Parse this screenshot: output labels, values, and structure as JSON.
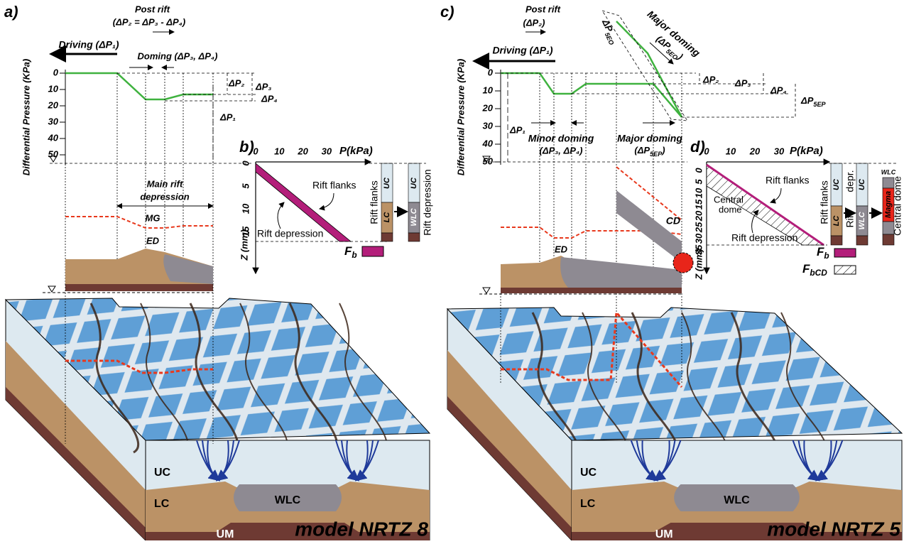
{
  "panel_a": {
    "label": "a)",
    "post_rift": "Post rift",
    "post_rift_eq": "(ΔP₂ = ΔP₃ - ΔP₄)",
    "driving": "Driving (ΔP₁)",
    "doming": "Doming (ΔP₃, ΔP₄)",
    "y_axis_label": "Differential Pressure (KPa)",
    "y_ticks": [
      "0",
      "10",
      "20",
      "30",
      "40",
      "50"
    ],
    "dp2": "ΔP₂",
    "dp3": "ΔP₃",
    "dp4": "ΔP₄",
    "dp1": "ΔP₁",
    "main_rift": "Main rift",
    "depression": "depression",
    "mg": "MG",
    "ed": "ED"
  },
  "panel_b": {
    "label": "b)",
    "x_ticks": [
      "0",
      "10",
      "20",
      "30"
    ],
    "x_axis_label": "P(kPa)",
    "y_ticks": [
      "0",
      "5",
      "10",
      "15"
    ],
    "y_axis_label": "Z (mm)",
    "rift_flanks": "Rift flanks",
    "rift_depression": "Rift depression",
    "fb": {
      "main": "F",
      "sub": "b"
    },
    "col_flanks": [
      "UC",
      "LC"
    ],
    "col_depression": [
      "UC",
      "WLC"
    ],
    "side_flanks": "Rift flanks",
    "side_depression": "Rift depression"
  },
  "panel_c": {
    "label": "c)",
    "post_rift": "Post rift",
    "post_rift_eq": "(ΔP₂)",
    "driving": "Driving (ΔP₁)",
    "major_doming_top": "Major doming",
    "major_doming_top_eq": {
      "main": "(ΔP",
      "sub": "5EO",
      "tail": ")"
    },
    "dp5eo": {
      "main": "ΔP",
      "sub": "5EO"
    },
    "y_axis_label": "Differential Pressure (KPa)",
    "y_ticks": [
      "0",
      "10",
      "20",
      "30",
      "40",
      "50"
    ],
    "dp2": "ΔP₂",
    "dp3": "ΔP₃",
    "dp4": "ΔP₄",
    "dp5ep": {
      "main": "ΔP",
      "sub": "5EP"
    },
    "dp1": "ΔP₁",
    "minor_doming": "Minor doming",
    "minor_doming_eq": "(ΔP₃, ΔP₄)",
    "major_doming": "Major doming",
    "major_doming_eq": {
      "main": "(ΔP",
      "sub": "5EP",
      "tail": ")"
    },
    "cd": "CD",
    "ed": "ED"
  },
  "panel_d": {
    "label": "d)",
    "x_ticks": [
      "0",
      "10",
      "20",
      "30"
    ],
    "x_axis_label": "P(kPa)",
    "y_ticks": [
      "0",
      "5",
      "10",
      "15",
      "20",
      "25",
      "30",
      "35"
    ],
    "y_axis_label": "Z (mm)",
    "rift_flanks": "Rift flanks",
    "central": "Central",
    "dome": "dome",
    "rift_depression": "Rift depression",
    "fb": {
      "main": "F",
      "sub": "b"
    },
    "fbcd": {
      "main": "F",
      "sub": "bCD"
    },
    "col_flanks": [
      "UC",
      "LC"
    ],
    "col_depression": [
      "UC",
      "WLC"
    ],
    "col_dome": [
      "WLC",
      "Magma"
    ],
    "side_flanks": "Rift flanks",
    "side_rift": "Rift",
    "side_depr": "depr.",
    "side_dome": "Central dome"
  },
  "block_a": {
    "uc": "UC",
    "lc": "LC",
    "wlc": "WLC",
    "um": "UM",
    "model": "model  NRTZ 8"
  },
  "block_c": {
    "uc": "UC",
    "lc": "LC",
    "wlc": "WLC",
    "um": "UM",
    "model": "model  NRTZ 5"
  }
}
